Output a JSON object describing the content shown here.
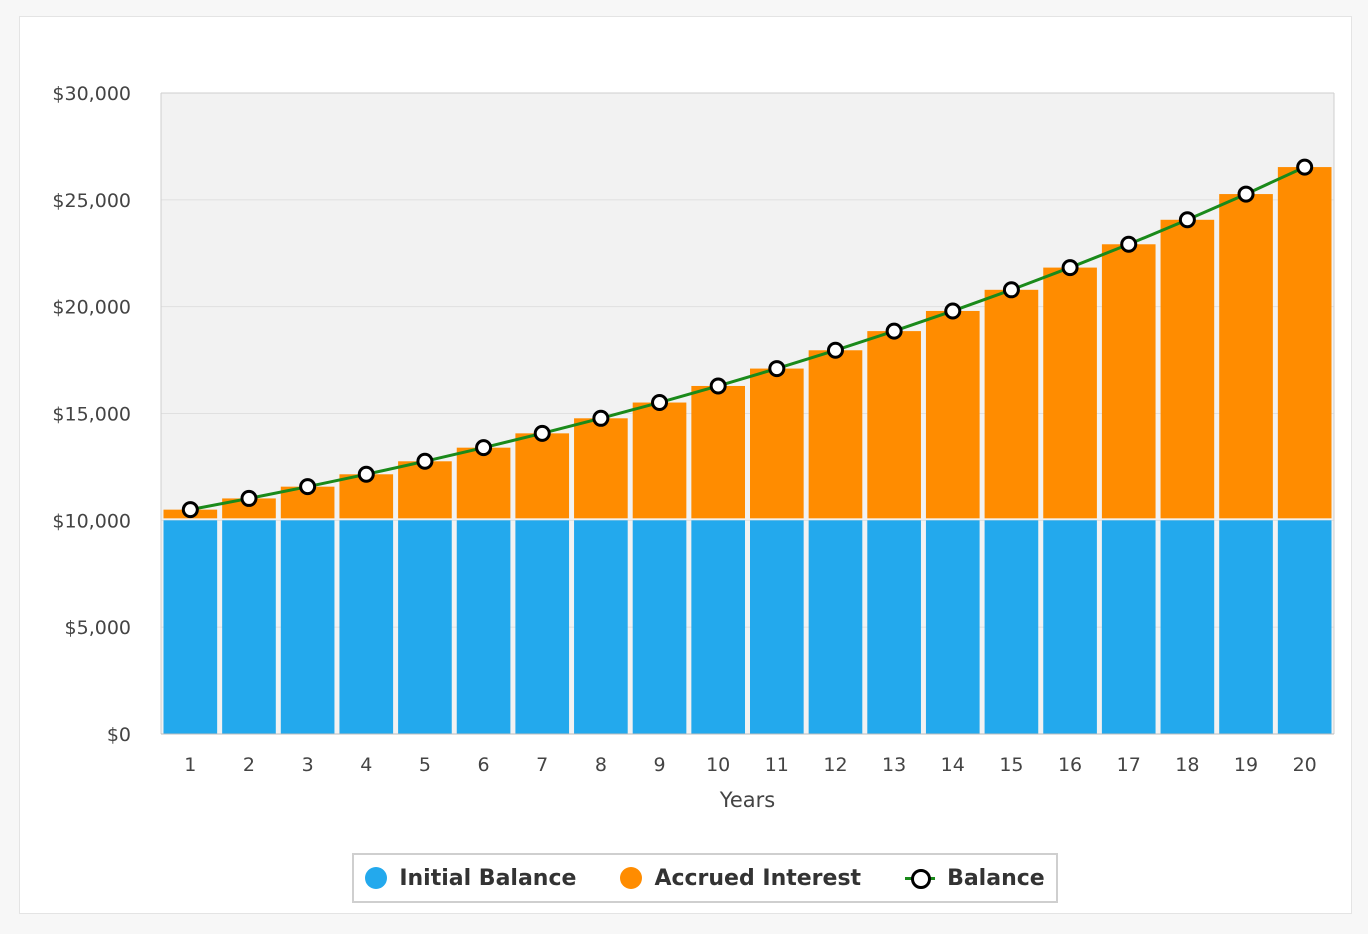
{
  "chart_data": {
    "type": "bar",
    "stacked": true,
    "categories": [
      "1",
      "2",
      "3",
      "4",
      "5",
      "6",
      "7",
      "8",
      "9",
      "10",
      "11",
      "12",
      "13",
      "14",
      "15",
      "16",
      "17",
      "18",
      "19",
      "20"
    ],
    "series": [
      {
        "name": "Initial Balance",
        "type": "bar",
        "color": "#23a9ed",
        "values": [
          10000,
          10000,
          10000,
          10000,
          10000,
          10000,
          10000,
          10000,
          10000,
          10000,
          10000,
          10000,
          10000,
          10000,
          10000,
          10000,
          10000,
          10000,
          10000,
          10000
        ]
      },
      {
        "name": "Accrued Interest",
        "type": "bar",
        "color": "#ff8c00",
        "values": [
          500,
          1025,
          1576,
          2155,
          2763,
          3401,
          4071,
          4775,
          5513,
          6289,
          7103,
          7959,
          8856,
          9799,
          10789,
          11829,
          12920,
          14066,
          15270,
          16533
        ]
      },
      {
        "name": "Balance",
        "type": "line",
        "color": "#1a8a1a",
        "values": [
          10500,
          11025,
          11576,
          12155,
          12763,
          13401,
          14071,
          14775,
          15513,
          16289,
          17103,
          17959,
          18856,
          19799,
          20789,
          21829,
          22920,
          24066,
          25270,
          26533
        ]
      }
    ],
    "yticks": [
      "$0",
      "$5,000",
      "$10,000",
      "$15,000",
      "$20,000",
      "$25,000",
      "$30,000"
    ],
    "ytick_values": [
      0,
      5000,
      10000,
      15000,
      20000,
      25000,
      30000
    ],
    "ylim": [
      0,
      30000
    ],
    "xlabel": "Years",
    "ylabel": "",
    "grid": true,
    "legend": "bottom-center"
  },
  "legend": {
    "items": [
      {
        "label": "Initial Balance",
        "color": "#23a9ed",
        "icon": "circle"
      },
      {
        "label": "Accrued Interest",
        "color": "#ff8c00",
        "icon": "circle"
      },
      {
        "label": "Balance",
        "color": "#1a8a1a",
        "icon": "line-marker"
      }
    ]
  }
}
